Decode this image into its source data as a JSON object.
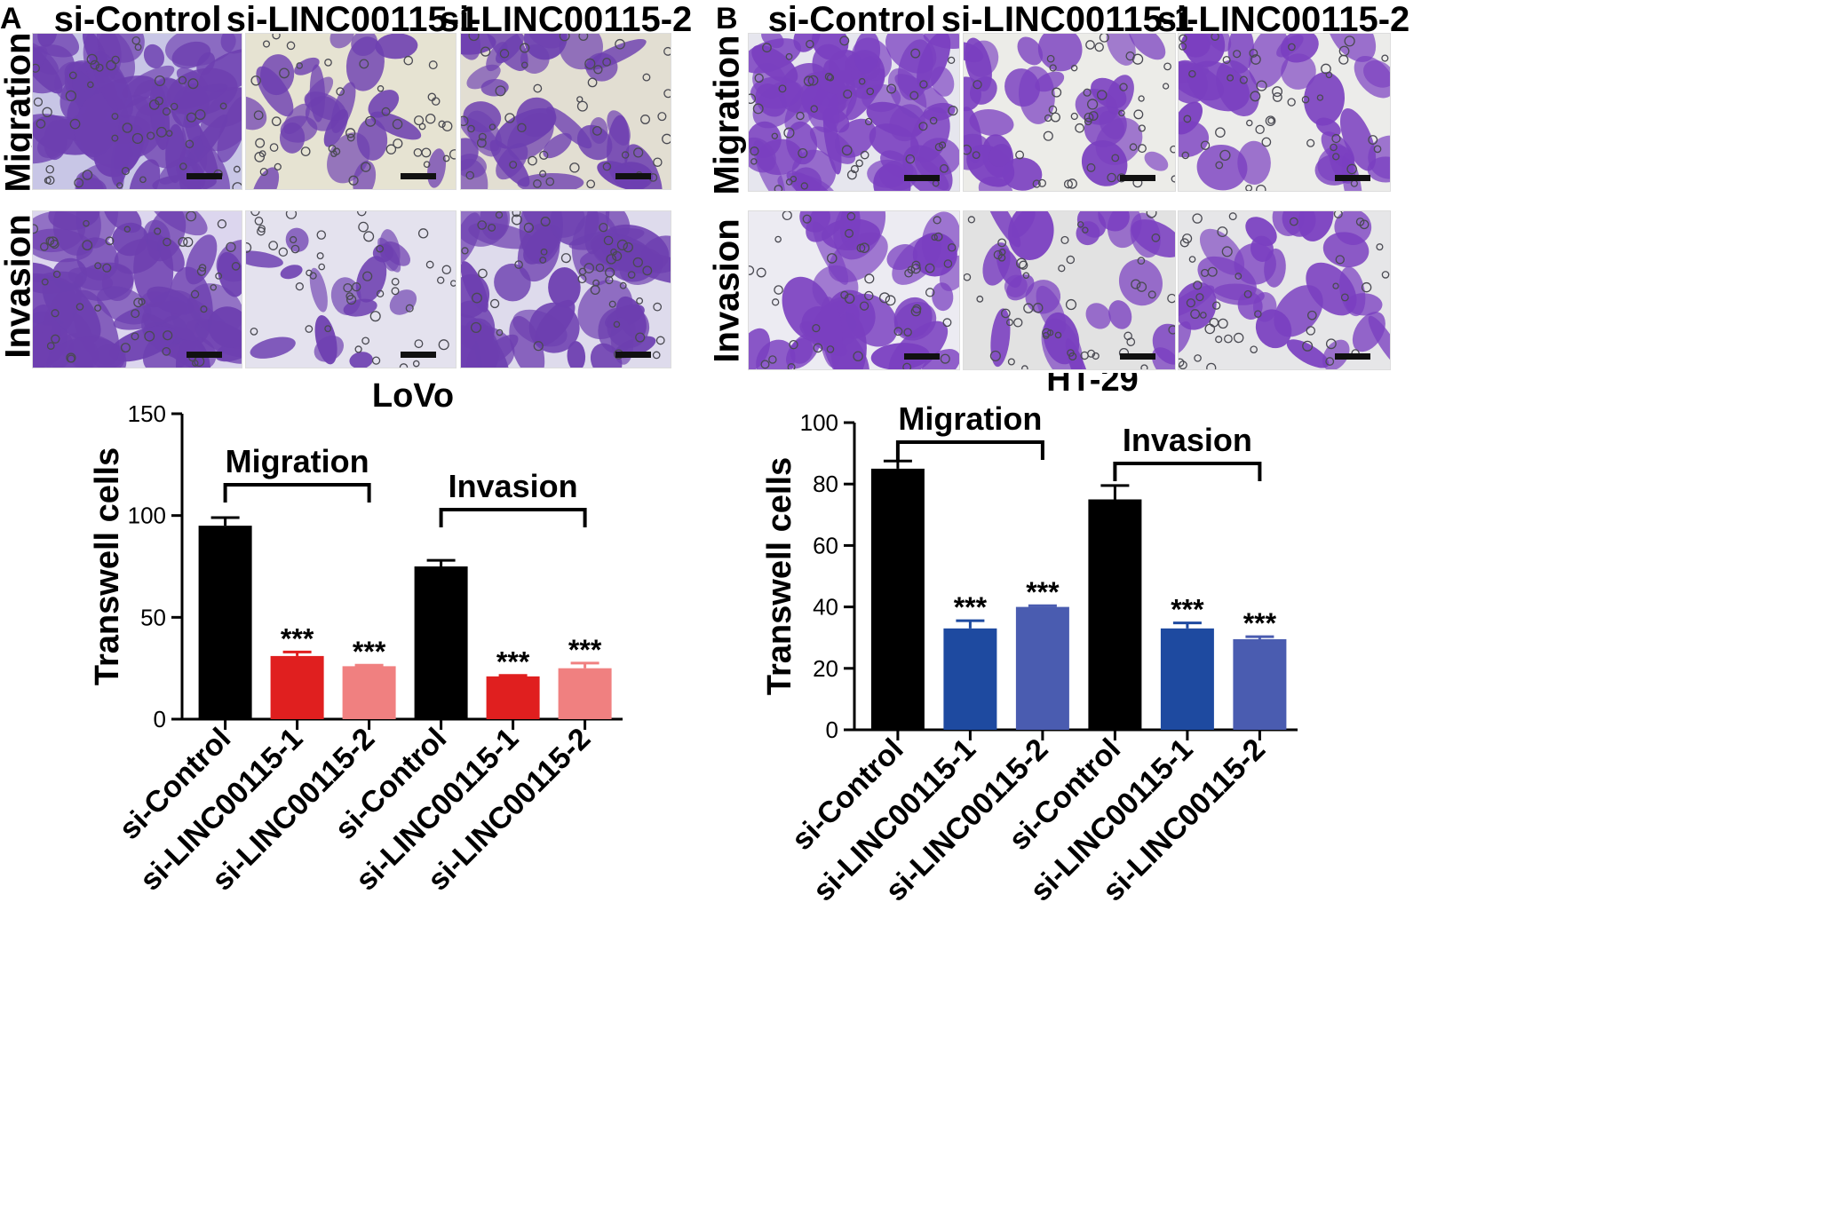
{
  "panels": {
    "A": {
      "letter": "A",
      "columns": [
        "si-Control",
        "si-LINC00115-1",
        "si-LINC00115-2"
      ],
      "rows": [
        "Migration",
        "Invasion"
      ],
      "cell_line": "LoVo"
    },
    "B": {
      "letter": "B",
      "columns": [
        "si-Control",
        "si-LINC00115-1",
        "si-LINC00115-2"
      ],
      "rows": [
        "Migration",
        "Invasion"
      ],
      "cell_line": "HT-29"
    }
  },
  "chart_data": [
    {
      "type": "bar",
      "panel": "A",
      "title": "LoVo",
      "ylabel": "Transwell cells",
      "ylim": [
        0,
        150
      ],
      "yticks": [
        0,
        50,
        100,
        150
      ],
      "categories": [
        "si-Control",
        "si-LINC00115-1",
        "si-LINC00115-2",
        "si-Control",
        "si-LINC00115-1",
        "si-LINC00115-2"
      ],
      "values": [
        95,
        31,
        26,
        75,
        21,
        25
      ],
      "errors": [
        4,
        2,
        0.5,
        3,
        0.5,
        2.5
      ],
      "colors": [
        "#000000",
        "#e01f1f",
        "#f08080",
        "#000000",
        "#e01f1f",
        "#f08080"
      ],
      "significance": [
        "",
        "***",
        "***",
        "",
        "***",
        "***"
      ],
      "groups": [
        {
          "label": "Migration",
          "from": 0,
          "to": 2
        },
        {
          "label": "Invasion",
          "from": 3,
          "to": 5
        }
      ],
      "grid": false
    },
    {
      "type": "bar",
      "panel": "B",
      "title": "HT-29",
      "ylabel": "Transwell cells",
      "ylim": [
        0,
        100
      ],
      "yticks": [
        0,
        20,
        40,
        60,
        80,
        100
      ],
      "categories": [
        "si-Control",
        "si-LINC00115-1",
        "si-LINC00115-2",
        "si-Control",
        "si-LINC00115-1",
        "si-LINC00115-2"
      ],
      "values": [
        85,
        33,
        40,
        75,
        33,
        29.5
      ],
      "errors": [
        2.5,
        2.5,
        0.4,
        4.5,
        1.8,
        0.8
      ],
      "colors": [
        "#000000",
        "#1e4aa0",
        "#4a5cb0",
        "#000000",
        "#1e4aa0",
        "#4a5cb0"
      ],
      "significance": [
        "",
        "***",
        "***",
        "",
        "***",
        "***"
      ],
      "groups": [
        {
          "label": "Migration",
          "from": 0,
          "to": 2
        },
        {
          "label": "Invasion",
          "from": 3,
          "to": 5
        }
      ],
      "grid": false
    }
  ]
}
